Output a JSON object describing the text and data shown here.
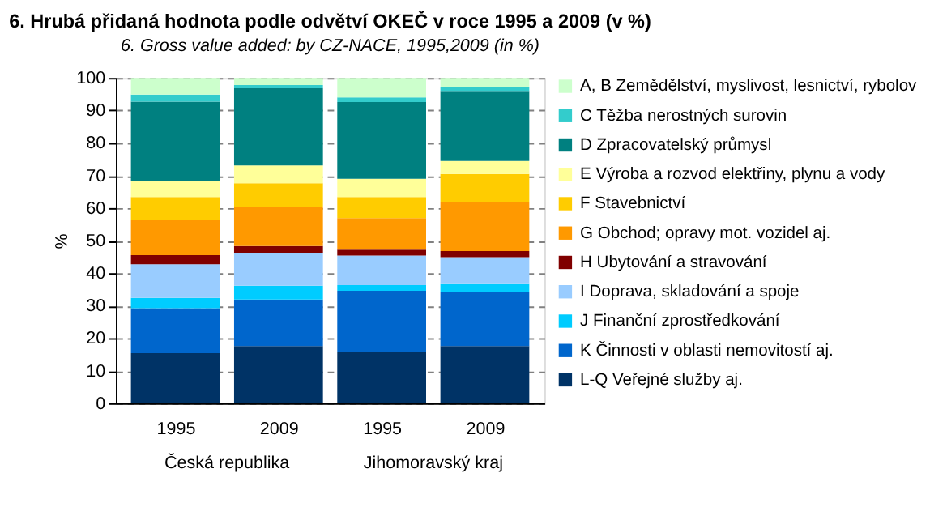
{
  "chart_data": {
    "type": "bar",
    "stacked": true,
    "title": "6. Hrubá přidaná hodnota podle odvětví OKEČ v roce 1995 a 2009 (v %)",
    "subtitle": "6.  Gross value added: by CZ-NACE, 1995,2009 (in %)",
    "ylabel": "%",
    "categories": [
      "1995",
      "2009",
      "1995",
      "2009"
    ],
    "annotations": [
      "Česká republika",
      "Jihomoravský kraj"
    ],
    "ylim": [
      0,
      100
    ],
    "yticks": [
      0,
      10,
      20,
      30,
      40,
      50,
      60,
      70,
      80,
      90,
      100
    ],
    "grid": "y",
    "legend": "right",
    "series": [
      {
        "name": "L-Q  Veřejné služby aj.",
        "color": "#003366",
        "values": [
          15.4,
          17.6,
          15.7,
          17.6
        ]
      },
      {
        "name": "K  Činnosti v oblasti nemovitostí aj.",
        "color": "#0066cc",
        "values": [
          13.8,
          14.3,
          18.9,
          16.7
        ]
      },
      {
        "name": "J  Finanční zprostředkování",
        "color": "#00ccff",
        "values": [
          3.2,
          4.2,
          1.7,
          2.3
        ]
      },
      {
        "name": "I  Doprava, skladování a spoje",
        "color": "#99ccff",
        "values": [
          10.3,
          10.2,
          9.1,
          8.3
        ]
      },
      {
        "name": "H  Ubytování a stravování",
        "color": "#800000",
        "values": [
          2.8,
          2.0,
          1.8,
          1.9
        ]
      },
      {
        "name": "G  Obchod; opravy mot. vozidel aj.",
        "color": "#ff9900",
        "values": [
          11.0,
          11.9,
          9.7,
          14.9
        ]
      },
      {
        "name": "F  Stavebnictví",
        "color": "#ffcc00",
        "values": [
          6.9,
          7.4,
          6.5,
          8.8
        ]
      },
      {
        "name": "E  Výroba a rozvod elektřiny, plynu a vody",
        "color": "#ffff99",
        "values": [
          5.0,
          5.5,
          5.6,
          4.0
        ]
      },
      {
        "name": "D  Zpracovatelský průmysl",
        "color": "#008080",
        "values": [
          24.3,
          23.7,
          23.6,
          21.5
        ]
      },
      {
        "name": "C  Těžba nerostných surovin",
        "color": "#33cccc",
        "values": [
          2.2,
          1.0,
          1.4,
          1.2
        ]
      },
      {
        "name": "A, B  Zemědělství, myslivost, lesnictví, rybolov",
        "color": "#ccffcc",
        "values": [
          5.1,
          2.2,
          6.0,
          2.8
        ]
      }
    ]
  }
}
